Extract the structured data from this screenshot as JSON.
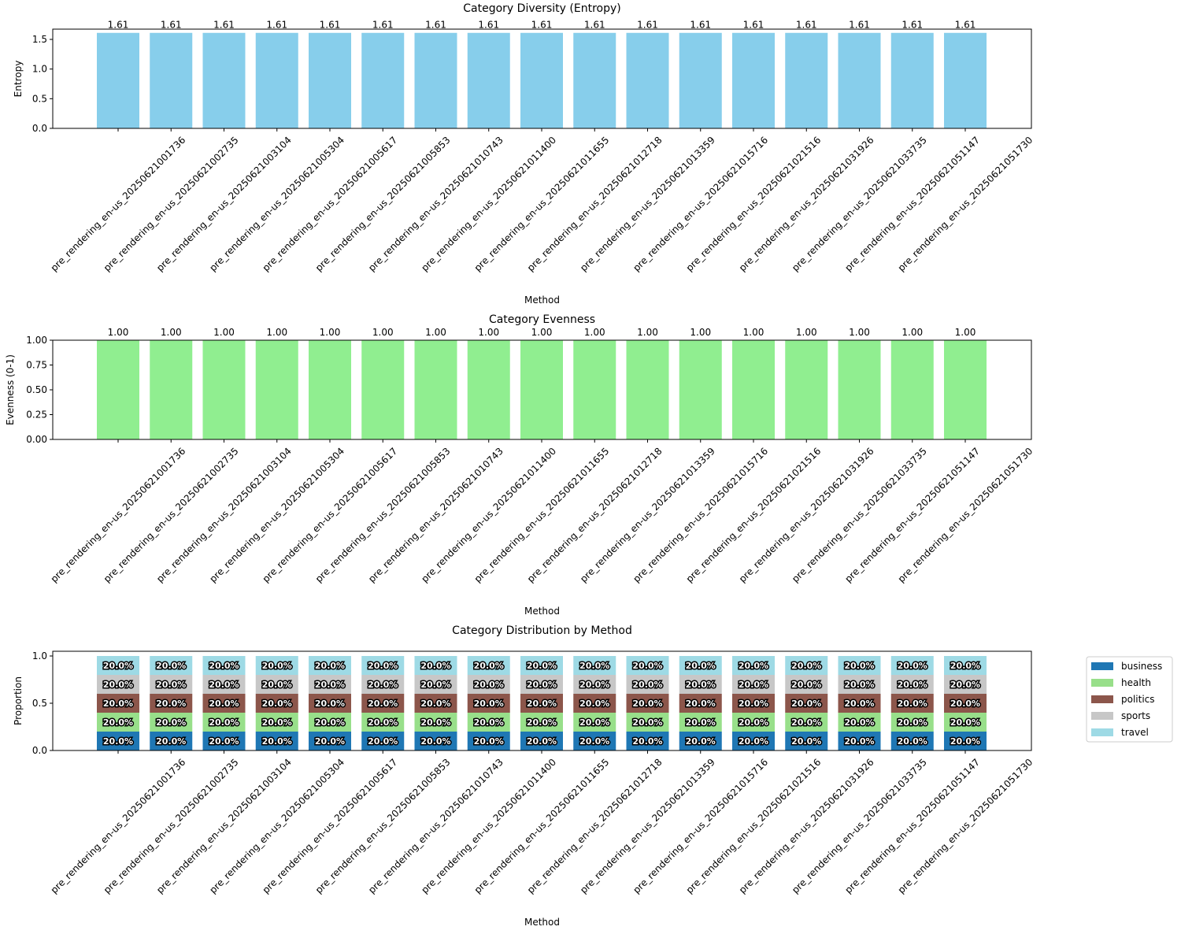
{
  "chart_data": [
    {
      "type": "bar",
      "title": "Category Diversity (Entropy)",
      "xlabel": "Method",
      "ylabel": "Entropy",
      "ylim": [
        0,
        1.673
      ],
      "yticks": [
        "0.0",
        "0.5",
        "1.0",
        "1.5"
      ],
      "ytick_values": [
        0,
        0.5,
        1.0,
        1.5
      ],
      "color": "#87ceeb",
      "value_format": 2,
      "categories": [
        "pre_rendering_en-us_20250621001736",
        "pre_rendering_en-us_20250621002735",
        "pre_rendering_en-us_20250621003104",
        "pre_rendering_en-us_20250621005304",
        "pre_rendering_en-us_20250621005617",
        "pre_rendering_en-us_20250621005853",
        "pre_rendering_en-us_20250621010743",
        "pre_rendering_en-us_20250621011400",
        "pre_rendering_en-us_20250621011655",
        "pre_rendering_en-us_20250621012718",
        "pre_rendering_en-us_20250621013359",
        "pre_rendering_en-us_20250621015716",
        "pre_rendering_en-us_20250621021516",
        "pre_rendering_en-us_20250621031926",
        "pre_rendering_en-us_20250621033735",
        "pre_rendering_en-us_20250621051147",
        "pre_rendering_en-us_20250621051730"
      ],
      "values": [
        1.61,
        1.61,
        1.61,
        1.61,
        1.61,
        1.61,
        1.61,
        1.61,
        1.61,
        1.61,
        1.61,
        1.61,
        1.61,
        1.61,
        1.61,
        1.61,
        1.61
      ],
      "data_labels": [
        "1.61",
        "1.61",
        "1.61",
        "1.61",
        "1.61",
        "1.61",
        "1.61",
        "1.61",
        "1.61",
        "1.61",
        "1.61",
        "1.61",
        "1.61",
        "1.61",
        "1.61",
        "1.61",
        "1.61"
      ]
    },
    {
      "type": "bar",
      "title": "Category Evenness",
      "xlabel": "Method",
      "ylabel": "Evenness (0-1)",
      "ylim": [
        0,
        1
      ],
      "yticks": [
        "0.00",
        "0.25",
        "0.50",
        "0.75",
        "1.00"
      ],
      "ytick_values": [
        0,
        0.25,
        0.5,
        0.75,
        1.0
      ],
      "color": "#90ee90",
      "categories": [
        "pre_rendering_en-us_20250621001736",
        "pre_rendering_en-us_20250621002735",
        "pre_rendering_en-us_20250621003104",
        "pre_rendering_en-us_20250621005304",
        "pre_rendering_en-us_20250621005617",
        "pre_rendering_en-us_20250621005853",
        "pre_rendering_en-us_20250621010743",
        "pre_rendering_en-us_20250621011400",
        "pre_rendering_en-us_20250621011655",
        "pre_rendering_en-us_20250621012718",
        "pre_rendering_en-us_20250621013359",
        "pre_rendering_en-us_20250621015716",
        "pre_rendering_en-us_20250621021516",
        "pre_rendering_en-us_20250621031926",
        "pre_rendering_en-us_20250621033735",
        "pre_rendering_en-us_20250621051147",
        "pre_rendering_en-us_20250621051730"
      ],
      "values": [
        1,
        1,
        1,
        1,
        1,
        1,
        1,
        1,
        1,
        1,
        1,
        1,
        1,
        1,
        1,
        1,
        1
      ],
      "data_labels": [
        "1.00",
        "1.00",
        "1.00",
        "1.00",
        "1.00",
        "1.00",
        "1.00",
        "1.00",
        "1.00",
        "1.00",
        "1.00",
        "1.00",
        "1.00",
        "1.00",
        "1.00",
        "1.00",
        "1.00"
      ]
    },
    {
      "type": "stacked-bar",
      "title": "Category Distribution by Method",
      "xlabel": "Method",
      "ylabel": "Proportion",
      "ylim": [
        0,
        1.05
      ],
      "yticks": [
        "0.0",
        "0.5",
        "1.0"
      ],
      "ytick_values": [
        0,
        0.5,
        1.0
      ],
      "legend_position": "outside-right",
      "categories": [
        "pre_rendering_en-us_20250621001736",
        "pre_rendering_en-us_20250621002735",
        "pre_rendering_en-us_20250621003104",
        "pre_rendering_en-us_20250621005304",
        "pre_rendering_en-us_20250621005617",
        "pre_rendering_en-us_20250621005853",
        "pre_rendering_en-us_20250621010743",
        "pre_rendering_en-us_20250621011400",
        "pre_rendering_en-us_20250621011655",
        "pre_rendering_en-us_20250621012718",
        "pre_rendering_en-us_20250621013359",
        "pre_rendering_en-us_20250621015716",
        "pre_rendering_en-us_20250621021516",
        "pre_rendering_en-us_20250621031926",
        "pre_rendering_en-us_20250621033735",
        "pre_rendering_en-us_20250621051147",
        "pre_rendering_en-us_20250621051730"
      ],
      "segment_label": "20.0%",
      "series": [
        {
          "name": "business",
          "color": "#1f77b4",
          "values": [
            0.2,
            0.2,
            0.2,
            0.2,
            0.2,
            0.2,
            0.2,
            0.2,
            0.2,
            0.2,
            0.2,
            0.2,
            0.2,
            0.2,
            0.2,
            0.2,
            0.2
          ]
        },
        {
          "name": "health",
          "color": "#98df8a",
          "values": [
            0.2,
            0.2,
            0.2,
            0.2,
            0.2,
            0.2,
            0.2,
            0.2,
            0.2,
            0.2,
            0.2,
            0.2,
            0.2,
            0.2,
            0.2,
            0.2,
            0.2
          ]
        },
        {
          "name": "politics",
          "color": "#8c564b",
          "values": [
            0.2,
            0.2,
            0.2,
            0.2,
            0.2,
            0.2,
            0.2,
            0.2,
            0.2,
            0.2,
            0.2,
            0.2,
            0.2,
            0.2,
            0.2,
            0.2,
            0.2
          ]
        },
        {
          "name": "sports",
          "color": "#c7c7c7",
          "values": [
            0.2,
            0.2,
            0.2,
            0.2,
            0.2,
            0.2,
            0.2,
            0.2,
            0.2,
            0.2,
            0.2,
            0.2,
            0.2,
            0.2,
            0.2,
            0.2,
            0.2
          ]
        },
        {
          "name": "travel",
          "color": "#9edae5",
          "values": [
            0.2,
            0.2,
            0.2,
            0.2,
            0.2,
            0.2,
            0.2,
            0.2,
            0.2,
            0.2,
            0.2,
            0.2,
            0.2,
            0.2,
            0.2,
            0.2,
            0.2
          ]
        }
      ]
    }
  ]
}
